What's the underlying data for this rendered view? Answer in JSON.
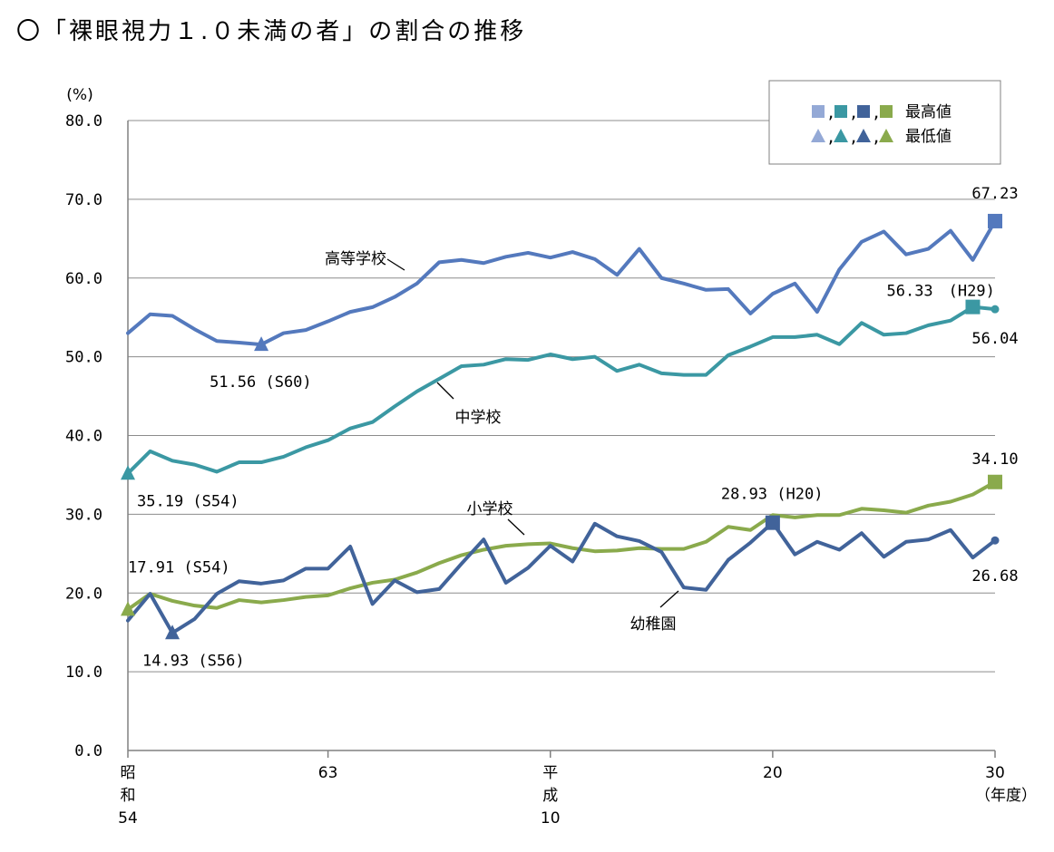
{
  "title": "〇「裸眼視力１.０未満の者」の割合の推移",
  "chart_data": {
    "type": "line",
    "y_unit_label": "(%)",
    "ylim": [
      0,
      80
    ],
    "y_ticks": [
      "0.0",
      "10.0",
      "20.0",
      "30.0",
      "40.0",
      "50.0",
      "60.0",
      "70.0",
      "80.0"
    ],
    "grid": true,
    "x": [
      "S54",
      "S55",
      "S56",
      "S57",
      "S58",
      "S59",
      "S60",
      "S61",
      "S62",
      "S63",
      "H1",
      "H2",
      "H3",
      "H4",
      "H5",
      "H6",
      "H7",
      "H8",
      "H9",
      "H10",
      "H11",
      "H12",
      "H13",
      "H14",
      "H15",
      "H16",
      "H17",
      "H18",
      "H19",
      "H20",
      "H21",
      "H22",
      "H23",
      "H24",
      "H25",
      "H26",
      "H27",
      "H28",
      "H29",
      "H30"
    ],
    "x_tick_labels": [
      {
        "index": 0,
        "lines": [
          "昭",
          "和",
          "54"
        ]
      },
      {
        "index": 9,
        "lines": [
          "63"
        ]
      },
      {
        "index": 19,
        "lines": [
          "平",
          "成",
          "10"
        ]
      },
      {
        "index": 29,
        "lines": [
          "20"
        ]
      },
      {
        "index": 39,
        "lines": [
          "30",
          "（年度）"
        ]
      }
    ],
    "series": [
      {
        "name": "高等学校",
        "color": "#5479bd",
        "values": [
          53.0,
          55.4,
          55.2,
          53.5,
          52.0,
          51.8,
          51.56,
          53.0,
          53.4,
          54.5,
          55.7,
          56.3,
          57.6,
          59.3,
          62.0,
          62.3,
          61.9,
          62.7,
          63.2,
          62.6,
          63.3,
          62.4,
          60.4,
          63.7,
          60.0,
          59.3,
          58.5,
          58.6,
          55.5,
          58.0,
          59.3,
          55.7,
          61.1,
          64.6,
          65.9,
          63.0,
          63.7,
          66.0,
          62.3,
          67.23
        ]
      },
      {
        "name": "中学校",
        "color": "#3b98a3",
        "values": [
          35.19,
          38.0,
          36.8,
          36.3,
          35.4,
          36.6,
          36.6,
          37.3,
          38.5,
          39.4,
          40.9,
          41.7,
          43.7,
          45.6,
          47.2,
          48.8,
          49.0,
          49.7,
          49.6,
          50.3,
          49.7,
          50.0,
          48.2,
          49.0,
          47.9,
          47.7,
          47.7,
          50.2,
          51.3,
          52.5,
          52.5,
          52.8,
          51.6,
          54.3,
          52.8,
          53.0,
          54.0,
          54.6,
          56.33,
          56.04
        ]
      },
      {
        "name": "小学校",
        "color": "#8aaa4c",
        "values": [
          17.91,
          19.9,
          19.0,
          18.4,
          18.1,
          19.1,
          18.8,
          19.1,
          19.5,
          19.7,
          20.6,
          21.3,
          21.7,
          22.6,
          23.8,
          24.8,
          25.5,
          26.0,
          26.2,
          26.3,
          25.7,
          25.3,
          25.4,
          25.7,
          25.6,
          25.6,
          26.5,
          28.4,
          28.0,
          29.9,
          29.6,
          29.9,
          29.9,
          30.7,
          30.5,
          30.2,
          31.1,
          31.6,
          32.5,
          34.1
        ]
      },
      {
        "name": "幼稚園",
        "color": "#41639a",
        "values": [
          16.5,
          19.9,
          14.93,
          16.7,
          19.9,
          21.5,
          21.2,
          21.6,
          23.1,
          23.1,
          25.9,
          18.6,
          21.6,
          20.1,
          20.5,
          23.7,
          26.8,
          21.3,
          23.2,
          26.0,
          24.0,
          28.8,
          27.2,
          26.6,
          25.2,
          20.7,
          20.4,
          24.2,
          26.4,
          28.93,
          24.9,
          26.5,
          25.5,
          27.6,
          24.6,
          26.5,
          26.8,
          28.0,
          24.5,
          26.68
        ]
      }
    ],
    "series_labels": [
      {
        "series": 0,
        "text": "高等学校"
      },
      {
        "series": 1,
        "text": "中学校"
      },
      {
        "series": 2,
        "text": "小学校"
      },
      {
        "series": 3,
        "text": "幼稚園"
      }
    ],
    "max_markers": [
      {
        "series": 0,
        "index": 39,
        "label": "67.23"
      },
      {
        "series": 1,
        "index": 38,
        "label": "56.33　(H29)"
      },
      {
        "series": 2,
        "index": 39,
        "label": "34.10"
      },
      {
        "series": 3,
        "index": 29,
        "label": "28.93 (H20)"
      }
    ],
    "min_markers": [
      {
        "series": 0,
        "index": 6,
        "label": "51.56 (S60)"
      },
      {
        "series": 1,
        "index": 0,
        "label": "35.19 (S54)"
      },
      {
        "series": 2,
        "index": 0,
        "label": "17.91 (S54)"
      },
      {
        "series": 3,
        "index": 2,
        "label": "14.93 (S56)"
      }
    ],
    "end_labels": [
      {
        "series": 1,
        "index": 39,
        "label": "56.04"
      },
      {
        "series": 3,
        "index": 39,
        "label": "26.68"
      }
    ],
    "legend": {
      "position": "top-right",
      "rows": [
        {
          "shape": "square",
          "text": "最高値",
          "separators": [
            ",",
            ",",
            ","
          ]
        },
        {
          "shape": "triangle",
          "text": "最低値",
          "separators": [
            ",",
            ",",
            ","
          ]
        }
      ],
      "marker_colors": [
        "#94a9d6",
        "#3b98a3",
        "#41639a",
        "#8aaa4c"
      ]
    }
  }
}
